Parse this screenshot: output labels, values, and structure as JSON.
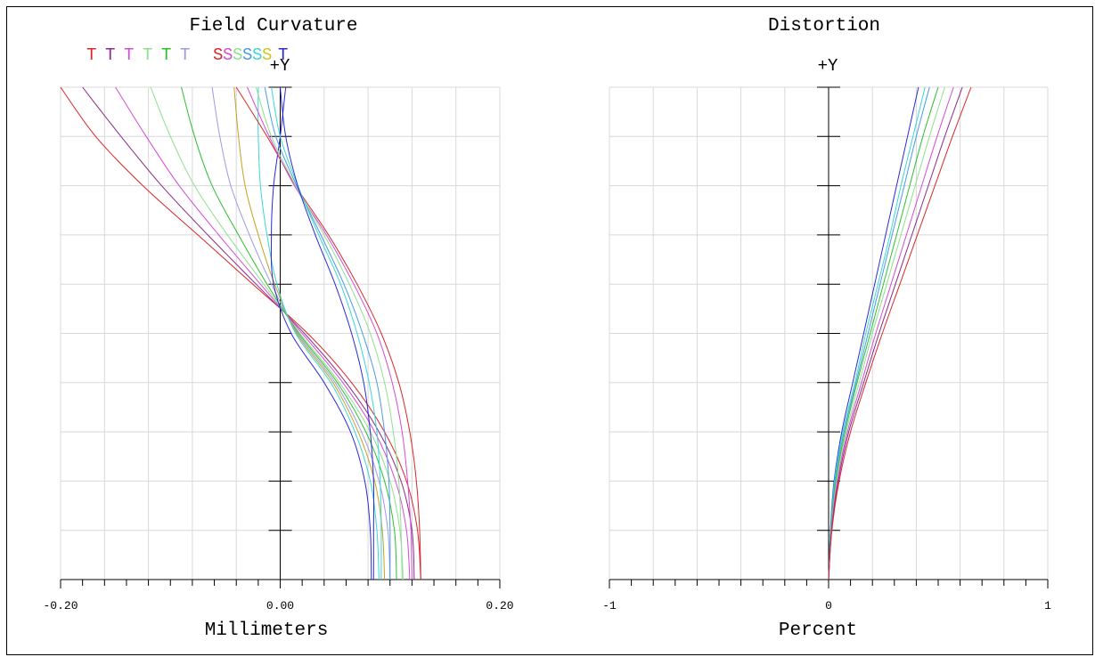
{
  "chart_data": [
    {
      "type": "line",
      "title": "Field Curvature",
      "xlabel": "Millimeters",
      "ylabel": "+Y",
      "xlim": [
        -0.2,
        0.2
      ],
      "ylim": [
        0,
        1
      ],
      "xtick_labels": [
        "-0.20",
        "0.00",
        "0.20"
      ],
      "xticks": [
        -0.2,
        0.0,
        0.2
      ],
      "grid": true,
      "legend": {
        "placement": "top-left",
        "entries": [
          {
            "label": "T",
            "color": "#d9262a"
          },
          {
            "label": "T",
            "color": "#8a2a8a"
          },
          {
            "label": "T",
            "color": "#d64ad6"
          },
          {
            "label": "T",
            "color": "#8ee08e"
          },
          {
            "label": "T",
            "color": "#2ebf2e"
          },
          {
            "label": "T",
            "color": "#9a9ae6"
          },
          {
            "label": "S",
            "color": "#d9262a"
          },
          {
            "label": "S",
            "color": "#d64ad6"
          },
          {
            "label": "S",
            "color": "#8ee08e"
          },
          {
            "label": "S",
            "color": "#4a9ae6"
          },
          {
            "label": "S",
            "color": "#3ad6d6"
          },
          {
            "label": "S",
            "color": "#c8c820"
          },
          {
            "label": "T",
            "color": "#2a2ad6"
          }
        ]
      },
      "y": [
        0,
        0.1,
        0.2,
        0.3,
        0.4,
        0.5,
        0.6,
        0.7,
        0.8,
        0.9,
        1.0
      ],
      "series": [
        {
          "color": "#d9262a",
          "x": [
            0.128,
            0.125,
            0.115,
            0.095,
            0.065,
            0.025,
            -0.025,
            -0.075,
            -0.125,
            -0.168,
            -0.2
          ]
        },
        {
          "color": "#8a2a8a",
          "x": [
            0.122,
            0.12,
            0.11,
            0.09,
            0.06,
            0.022,
            -0.022,
            -0.066,
            -0.108,
            -0.145,
            -0.18
          ]
        },
        {
          "color": "#d64ad6",
          "x": [
            0.118,
            0.115,
            0.105,
            0.086,
            0.057,
            0.02,
            -0.018,
            -0.056,
            -0.092,
            -0.122,
            -0.15
          ]
        },
        {
          "color": "#8ee08e",
          "x": [
            0.112,
            0.109,
            0.1,
            0.082,
            0.054,
            0.018,
            -0.015,
            -0.048,
            -0.078,
            -0.1,
            -0.118
          ]
        },
        {
          "color": "#2ebf2e",
          "x": [
            0.106,
            0.104,
            0.095,
            0.078,
            0.052,
            0.017,
            -0.012,
            -0.038,
            -0.062,
            -0.078,
            -0.09
          ]
        },
        {
          "color": "#9a9ae6",
          "x": [
            0.1,
            0.098,
            0.09,
            0.074,
            0.05,
            0.016,
            -0.008,
            -0.028,
            -0.045,
            -0.055,
            -0.062
          ]
        },
        {
          "color": "#c8a020",
          "x": [
            0.095,
            0.093,
            0.086,
            0.071,
            0.048,
            0.015,
            -0.005,
            -0.02,
            -0.032,
            -0.038,
            -0.042
          ]
        },
        {
          "color": "#3ad6d6",
          "x": [
            0.09,
            0.088,
            0.082,
            0.068,
            0.046,
            0.014,
            -0.003,
            -0.012,
            -0.018,
            -0.02,
            -0.02
          ]
        },
        {
          "color": "#2a2ad6",
          "x": [
            0.083,
            0.082,
            0.077,
            0.064,
            0.04,
            0.01,
            -0.006,
            -0.008,
            -0.006,
            0.0,
            0.005
          ]
        },
        {
          "color": "#d9262a",
          "x": [
            0.128,
            0.127,
            0.124,
            0.118,
            0.108,
            0.092,
            0.07,
            0.044,
            0.014,
            -0.012,
            -0.04
          ]
        },
        {
          "color": "#d64ad6",
          "x": [
            0.12,
            0.119,
            0.116,
            0.111,
            0.102,
            0.088,
            0.067,
            0.042,
            0.013,
            -0.01,
            -0.03
          ]
        },
        {
          "color": "#8ee08e",
          "x": [
            0.111,
            0.11,
            0.108,
            0.103,
            0.095,
            0.082,
            0.063,
            0.04,
            0.014,
            -0.008,
            -0.022
          ]
        },
        {
          "color": "#4a9ae6",
          "x": [
            0.1,
            0.1,
            0.099,
            0.095,
            0.088,
            0.075,
            0.058,
            0.037,
            0.015,
            -0.004,
            -0.014
          ]
        },
        {
          "color": "#3ad6d6",
          "x": [
            0.092,
            0.092,
            0.091,
            0.088,
            0.081,
            0.07,
            0.055,
            0.035,
            0.016,
            0.0,
            -0.008
          ]
        },
        {
          "color": "#2a2ad6",
          "x": [
            0.085,
            0.085,
            0.085,
            0.082,
            0.076,
            0.065,
            0.05,
            0.032,
            0.016,
            0.005,
            0.0
          ]
        }
      ]
    },
    {
      "type": "line",
      "title": "Distortion",
      "xlabel": "Percent",
      "ylabel": "+Y",
      "xlim": [
        -1,
        1
      ],
      "ylim": [
        0,
        1
      ],
      "xtick_labels": [
        "-1",
        "0",
        "1"
      ],
      "xticks": [
        -1,
        0,
        1
      ],
      "grid": true,
      "y": [
        0,
        0.1,
        0.2,
        0.3,
        0.4,
        0.5,
        0.6,
        0.7,
        0.8,
        0.9,
        1.0
      ],
      "series": [
        {
          "color": "#2a2ad6",
          "x": [
            0,
            0.008,
            0.025,
            0.06,
            0.11,
            0.16,
            0.21,
            0.26,
            0.31,
            0.36,
            0.41
          ]
        },
        {
          "color": "#3ad6d6",
          "x": [
            0,
            0.009,
            0.027,
            0.065,
            0.12,
            0.17,
            0.225,
            0.28,
            0.33,
            0.385,
            0.44
          ]
        },
        {
          "color": "#4a9ae6",
          "x": [
            0,
            0.01,
            0.03,
            0.07,
            0.125,
            0.18,
            0.235,
            0.29,
            0.345,
            0.4,
            0.46
          ]
        },
        {
          "color": "#2ebf2e",
          "x": [
            0,
            0.011,
            0.033,
            0.075,
            0.13,
            0.19,
            0.25,
            0.31,
            0.37,
            0.43,
            0.5
          ]
        },
        {
          "color": "#8ee08e",
          "x": [
            0,
            0.012,
            0.036,
            0.08,
            0.14,
            0.2,
            0.265,
            0.33,
            0.395,
            0.46,
            0.53
          ]
        },
        {
          "color": "#d64ad6",
          "x": [
            0,
            0.013,
            0.04,
            0.086,
            0.15,
            0.215,
            0.285,
            0.355,
            0.425,
            0.495,
            0.57
          ]
        },
        {
          "color": "#8a2a8a",
          "x": [
            0,
            0.014,
            0.044,
            0.092,
            0.16,
            0.23,
            0.305,
            0.38,
            0.455,
            0.53,
            0.61
          ]
        },
        {
          "color": "#d9262a",
          "x": [
            0,
            0.015,
            0.048,
            0.1,
            0.17,
            0.245,
            0.325,
            0.405,
            0.485,
            0.565,
            0.65
          ]
        }
      ]
    }
  ]
}
